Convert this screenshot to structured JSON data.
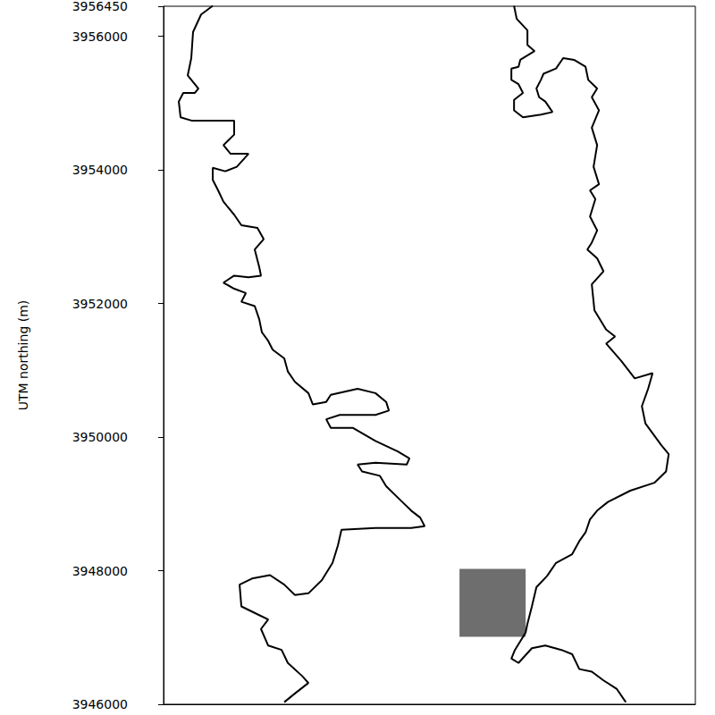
{
  "chart_data": {
    "type": "line",
    "y_label": "UTM northing (m)",
    "xlim": [
      600000,
      607750
    ],
    "ylim": [
      3946000,
      3956450
    ],
    "yticks": [
      3946000,
      3948000,
      3950000,
      3952000,
      3954000,
      3956000
    ],
    "tick_labels": "y",
    "grid": false,
    "series": [
      {
        "color": "#000000",
        "line_style": "solid",
        "values": [
          [
            600717,
            3956456
          ],
          [
            600547,
            3956326
          ],
          [
            600430,
            3956065
          ],
          [
            600404,
            3955674
          ],
          [
            600352,
            3955414
          ],
          [
            600508,
            3955218
          ],
          [
            600456,
            3955153
          ],
          [
            600287,
            3955153
          ],
          [
            600222,
            3955023
          ],
          [
            600248,
            3954788
          ],
          [
            600417,
            3954736
          ],
          [
            600678,
            3954736
          ],
          [
            601029,
            3954736
          ],
          [
            601029,
            3954528
          ],
          [
            600873,
            3954371
          ],
          [
            600977,
            3954241
          ],
          [
            601238,
            3954241
          ],
          [
            601068,
            3954046
          ],
          [
            600899,
            3953980
          ],
          [
            600717,
            3954032
          ],
          [
            600717,
            3953850
          ],
          [
            600795,
            3953694
          ],
          [
            600873,
            3953524
          ],
          [
            601029,
            3953329
          ],
          [
            601134,
            3953172
          ],
          [
            601368,
            3953133
          ],
          [
            601459,
            3952964
          ],
          [
            601329,
            3952808
          ],
          [
            601394,
            3952547
          ],
          [
            601420,
            3952417
          ],
          [
            601238,
            3952391
          ],
          [
            601029,
            3952417
          ],
          [
            600873,
            3952312
          ],
          [
            601029,
            3952221
          ],
          [
            601199,
            3952156
          ],
          [
            601134,
            3952026
          ],
          [
            601329,
            3951961
          ],
          [
            601394,
            3951765
          ],
          [
            601433,
            3951570
          ],
          [
            601525,
            3951440
          ],
          [
            601590,
            3951309
          ],
          [
            601759,
            3951179
          ],
          [
            601811,
            3950983
          ],
          [
            601915,
            3950827
          ],
          [
            602111,
            3950658
          ],
          [
            602176,
            3950488
          ],
          [
            602371,
            3950527
          ],
          [
            602437,
            3950632
          ],
          [
            602828,
            3950723
          ],
          [
            603088,
            3950658
          ],
          [
            603244,
            3950527
          ],
          [
            603284,
            3950397
          ],
          [
            603088,
            3950332
          ],
          [
            602567,
            3950332
          ],
          [
            602371,
            3950267
          ],
          [
            602437,
            3950137
          ],
          [
            602762,
            3950137
          ],
          [
            603088,
            3949941
          ],
          [
            603414,
            3949785
          ],
          [
            603583,
            3949680
          ],
          [
            603544,
            3949589
          ],
          [
            603088,
            3949615
          ],
          [
            602828,
            3949589
          ],
          [
            602893,
            3949485
          ],
          [
            603153,
            3949420
          ],
          [
            603244,
            3949264
          ],
          [
            603479,
            3949029
          ],
          [
            603609,
            3948899
          ],
          [
            603740,
            3948795
          ],
          [
            603805,
            3948665
          ],
          [
            603609,
            3948638
          ],
          [
            603088,
            3948638
          ],
          [
            602593,
            3948612
          ],
          [
            602541,
            3948378
          ],
          [
            602463,
            3948117
          ],
          [
            602306,
            3947857
          ],
          [
            602111,
            3947661
          ],
          [
            601915,
            3947635
          ],
          [
            601759,
            3947791
          ],
          [
            601551,
            3947934
          ],
          [
            601290,
            3947882
          ],
          [
            601108,
            3947791
          ],
          [
            601134,
            3947465
          ],
          [
            601394,
            3947335
          ],
          [
            601525,
            3947270
          ],
          [
            601420,
            3947127
          ],
          [
            601525,
            3946879
          ],
          [
            601720,
            3946814
          ],
          [
            601811,
            3946619
          ],
          [
            602020,
            3946423
          ],
          [
            602111,
            3946319
          ],
          [
            601915,
            3946162
          ],
          [
            601759,
            3946032
          ]
        ]
      },
      {
        "color": "#000000",
        "line_style": "solid",
        "values": [
          [
            605108,
            3956456
          ],
          [
            605147,
            3956261
          ],
          [
            605303,
            3956091
          ],
          [
            605303,
            3955870
          ],
          [
            605407,
            3955778
          ],
          [
            605199,
            3955648
          ],
          [
            605173,
            3955544
          ],
          [
            605069,
            3955518
          ],
          [
            605069,
            3955348
          ],
          [
            605173,
            3955283
          ],
          [
            605238,
            3955153
          ],
          [
            605108,
            3955049
          ],
          [
            605108,
            3954892
          ],
          [
            605238,
            3954788
          ],
          [
            605499,
            3954827
          ],
          [
            605668,
            3954866
          ],
          [
            605564,
            3955023
          ],
          [
            605473,
            3955088
          ],
          [
            605434,
            3955218
          ],
          [
            605499,
            3955348
          ],
          [
            605538,
            3955440
          ],
          [
            605720,
            3955518
          ],
          [
            605824,
            3955674
          ],
          [
            605981,
            3955648
          ],
          [
            606150,
            3955544
          ],
          [
            606189,
            3955348
          ],
          [
            606319,
            3955218
          ],
          [
            606241,
            3955088
          ],
          [
            606346,
            3954892
          ],
          [
            606241,
            3954632
          ],
          [
            606319,
            3954371
          ],
          [
            606267,
            3954046
          ],
          [
            606346,
            3953785
          ],
          [
            606215,
            3953694
          ],
          [
            606293,
            3953563
          ],
          [
            606215,
            3953303
          ],
          [
            606319,
            3953094
          ],
          [
            606241,
            3952912
          ],
          [
            606176,
            3952808
          ],
          [
            606319,
            3952677
          ],
          [
            606411,
            3952482
          ],
          [
            606241,
            3952286
          ],
          [
            606280,
            3951896
          ],
          [
            606450,
            3951609
          ],
          [
            606580,
            3951505
          ],
          [
            606450,
            3951400
          ],
          [
            606671,
            3951140
          ],
          [
            606867,
            3950879
          ],
          [
            607127,
            3950957
          ],
          [
            607062,
            3950723
          ],
          [
            606971,
            3950462
          ],
          [
            607023,
            3950202
          ],
          [
            607257,
            3949876
          ],
          [
            607362,
            3949746
          ],
          [
            607323,
            3949485
          ],
          [
            607153,
            3949316
          ],
          [
            606802,
            3949198
          ],
          [
            606476,
            3949029
          ],
          [
            606319,
            3948899
          ],
          [
            606215,
            3948768
          ],
          [
            606150,
            3948573
          ],
          [
            606059,
            3948443
          ],
          [
            605955,
            3948247
          ],
          [
            605720,
            3948117
          ],
          [
            605590,
            3947921
          ],
          [
            605434,
            3947752
          ],
          [
            605368,
            3947465
          ],
          [
            605303,
            3947205
          ],
          [
            605277,
            3947075
          ],
          [
            605199,
            3946944
          ],
          [
            605121,
            3946814
          ],
          [
            605069,
            3946684
          ],
          [
            605173,
            3946619
          ],
          [
            605368,
            3946840
          ],
          [
            605564,
            3946879
          ],
          [
            605798,
            3946814
          ],
          [
            605955,
            3946749
          ],
          [
            606059,
            3946527
          ],
          [
            606241,
            3946488
          ],
          [
            606411,
            3946358
          ],
          [
            606606,
            3946228
          ],
          [
            606737,
            3946032
          ]
        ]
      }
    ],
    "image": {
      "x": [
        604313,
        605277
      ],
      "y": [
        3947010,
        3948026
      ],
      "color": "#6e6e6e"
    }
  }
}
